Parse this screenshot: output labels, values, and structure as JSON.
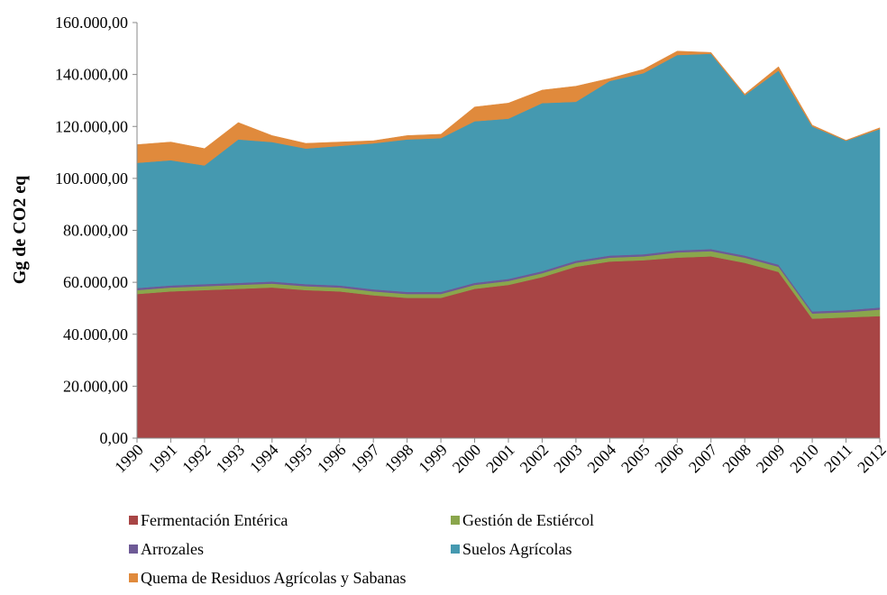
{
  "chart_data": {
    "type": "stacked_area",
    "ylabel": "Gg de CO2 eq",
    "categories": [
      "1990",
      "1991",
      "1992",
      "1993",
      "1994",
      "1995",
      "1996",
      "1997",
      "1998",
      "1999",
      "2000",
      "2001",
      "2002",
      "2003",
      "2004",
      "2005",
      "2006",
      "2007",
      "2008",
      "2009",
      "2010",
      "2011",
      "2012"
    ],
    "series": [
      {
        "name": "Fermentación Entérica",
        "color": "#a84545",
        "values": [
          55500,
          56500,
          57000,
          57500,
          58000,
          57000,
          56500,
          55000,
          54000,
          54000,
          57500,
          59000,
          62000,
          66000,
          68000,
          68500,
          69500,
          70000,
          67500,
          64000,
          46000,
          46500,
          47000
        ]
      },
      {
        "name": "Gestión de Estiércol",
        "color": "#8aa64c",
        "values": [
          1500,
          1500,
          1500,
          1500,
          1500,
          1500,
          1500,
          1500,
          1500,
          1500,
          1500,
          1500,
          1500,
          1500,
          1500,
          1500,
          2000,
          2000,
          2000,
          2000,
          2000,
          2000,
          2500
        ]
      },
      {
        "name": "Arrozales",
        "color": "#6e5a96",
        "values": [
          800,
          800,
          800,
          800,
          800,
          800,
          800,
          800,
          800,
          800,
          800,
          800,
          800,
          800,
          800,
          800,
          800,
          800,
          800,
          800,
          800,
          800,
          800
        ]
      },
      {
        "name": "Suelos Agrícolas",
        "color": "#4599b0",
        "values": [
          48200,
          48200,
          45700,
          55200,
          53700,
          52200,
          53700,
          56200,
          58700,
          59200,
          62200,
          61700,
          64700,
          61200,
          67200,
          69700,
          75200,
          75200,
          61700,
          74700,
          71200,
          65200,
          68700
        ]
      },
      {
        "name": "Quema de Residuos Agrícolas y Sabanas",
        "color": "#e08a3c",
        "values": [
          7000,
          7000,
          6500,
          6500,
          2500,
          2000,
          1500,
          1000,
          1500,
          1500,
          5500,
          6000,
          5000,
          6000,
          1000,
          1500,
          1500,
          500,
          500,
          1500,
          500,
          200,
          500
        ]
      }
    ],
    "ylim": [
      0,
      160000
    ],
    "yticks": [
      {
        "value": 0,
        "label": "0,00"
      },
      {
        "value": 20000,
        "label": "20.000,00"
      },
      {
        "value": 40000,
        "label": "40.000,00"
      },
      {
        "value": 60000,
        "label": "60.000,00"
      },
      {
        "value": 80000,
        "label": "80.000,00"
      },
      {
        "value": 100000,
        "label": "100.000,00"
      },
      {
        "value": 120000,
        "label": "120.000,00"
      },
      {
        "value": 140000,
        "label": "140.000,00"
      },
      {
        "value": 160000,
        "label": "160.000,00"
      }
    ],
    "grid": false
  }
}
